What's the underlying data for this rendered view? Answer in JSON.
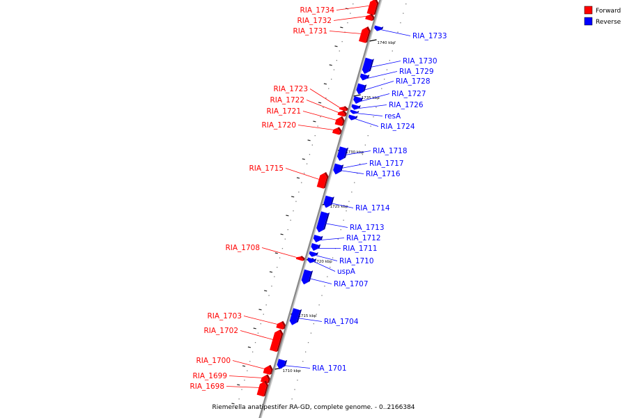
{
  "caption": "Riemerella anatipestifer RA-GD, complete genome. - 0..2166384",
  "legend": [
    {
      "label": "Forward",
      "color": "#ff0000"
    },
    {
      "label": "Reverse",
      "color": "#0000ff"
    }
  ],
  "colors": {
    "forward": "#ff0000",
    "reverse": "#0000ff",
    "backbone": "#888888"
  },
  "ticks": [
    "1740 kbp",
    "1735 kbp",
    "1730 kbp",
    "1725 kbp",
    "1720 kbp",
    "1715 kbp",
    "1710 kbp"
  ],
  "genes": [
    {
      "name": "RIA_1734",
      "strand": "forward"
    },
    {
      "name": "RIA_1732",
      "strand": "forward"
    },
    {
      "name": "RIA_1731",
      "strand": "forward"
    },
    {
      "name": "RIA_1733",
      "strand": "reverse"
    },
    {
      "name": "RIA_1730",
      "strand": "reverse"
    },
    {
      "name": "RIA_1729",
      "strand": "reverse"
    },
    {
      "name": "RIA_1728",
      "strand": "reverse"
    },
    {
      "name": "RIA_1727",
      "strand": "reverse"
    },
    {
      "name": "RIA_1726",
      "strand": "reverse"
    },
    {
      "name": "resA",
      "strand": "reverse"
    },
    {
      "name": "RIA_1724",
      "strand": "reverse"
    },
    {
      "name": "RIA_1723",
      "strand": "forward"
    },
    {
      "name": "RIA_1722",
      "strand": "forward"
    },
    {
      "name": "RIA_1721",
      "strand": "forward"
    },
    {
      "name": "RIA_1720",
      "strand": "forward"
    },
    {
      "name": "RIA_1718",
      "strand": "reverse"
    },
    {
      "name": "RIA_1717",
      "strand": "reverse"
    },
    {
      "name": "RIA_1716",
      "strand": "reverse"
    },
    {
      "name": "RIA_1715",
      "strand": "forward"
    },
    {
      "name": "RIA_1714",
      "strand": "reverse"
    },
    {
      "name": "RIA_1713",
      "strand": "reverse"
    },
    {
      "name": "RIA_1712",
      "strand": "reverse"
    },
    {
      "name": "RIA_1711",
      "strand": "reverse"
    },
    {
      "name": "RIA_1710",
      "strand": "reverse"
    },
    {
      "name": "uspA",
      "strand": "reverse"
    },
    {
      "name": "RIA_1707",
      "strand": "reverse"
    },
    {
      "name": "RIA_1708",
      "strand": "forward"
    },
    {
      "name": "RIA_1703",
      "strand": "forward"
    },
    {
      "name": "RIA_1702",
      "strand": "forward"
    },
    {
      "name": "RIA_1704",
      "strand": "reverse"
    },
    {
      "name": "RIA_1700",
      "strand": "forward"
    },
    {
      "name": "RIA_1699",
      "strand": "forward"
    },
    {
      "name": "RIA_1698",
      "strand": "forward"
    },
    {
      "name": "RIA_1701",
      "strand": "reverse"
    }
  ]
}
